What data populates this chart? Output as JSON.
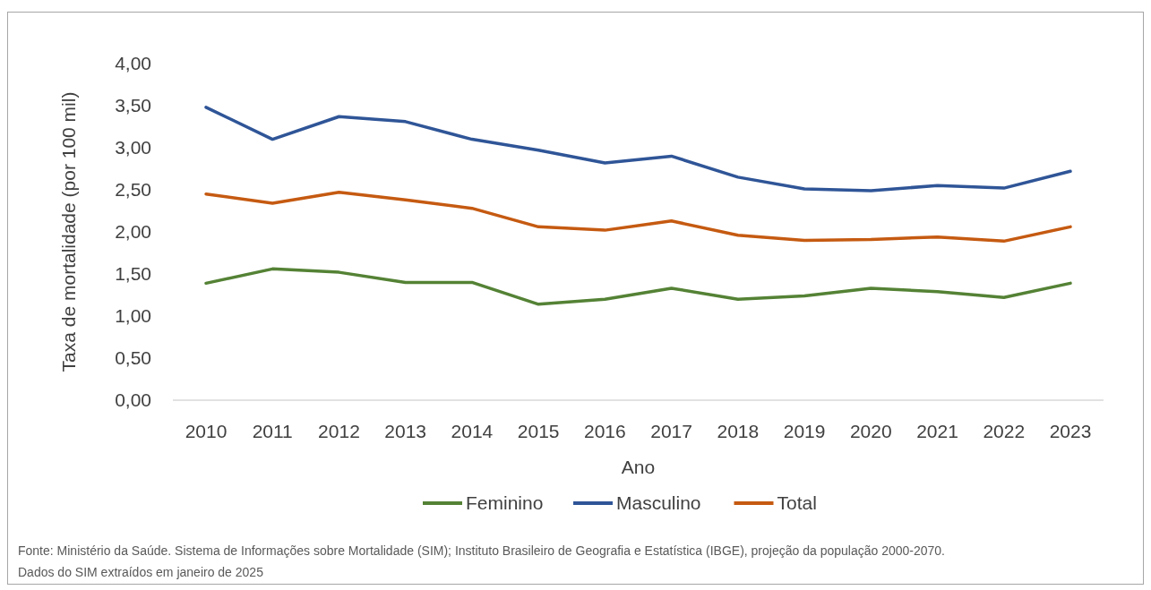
{
  "chart_data": {
    "type": "line",
    "xlabel": "Ano",
    "ylabel": "Taxa de mortalidade (por 100 mil)",
    "categories": [
      "2010",
      "2011",
      "2012",
      "2013",
      "2014",
      "2015",
      "2016",
      "2017",
      "2018",
      "2019",
      "2020",
      "2021",
      "2022",
      "2023"
    ],
    "series": [
      {
        "name": "Feminino",
        "color": "#548235",
        "values": [
          1.39,
          1.56,
          1.52,
          1.4,
          1.4,
          1.14,
          1.2,
          1.33,
          1.2,
          1.24,
          1.33,
          1.29,
          1.22,
          1.39
        ]
      },
      {
        "name": "Masculino",
        "color": "#2f5597",
        "values": [
          3.48,
          3.1,
          3.37,
          3.31,
          3.1,
          2.97,
          2.82,
          2.9,
          2.65,
          2.51,
          2.49,
          2.55,
          2.52,
          2.72
        ]
      },
      {
        "name": "Total",
        "color": "#c55a11",
        "values": [
          2.45,
          2.34,
          2.47,
          2.38,
          2.28,
          2.06,
          2.02,
          2.13,
          1.96,
          1.9,
          1.91,
          1.94,
          1.89,
          2.06
        ]
      }
    ],
    "ylim": [
      0,
      4
    ],
    "yticks": [
      {
        "value": 0,
        "label": "0,00"
      },
      {
        "value": 0.5,
        "label": "0,50"
      },
      {
        "value": 1,
        "label": "1,00"
      },
      {
        "value": 1.5,
        "label": "1,50"
      },
      {
        "value": 2,
        "label": "2,00"
      },
      {
        "value": 2.5,
        "label": "2,50"
      },
      {
        "value": 3,
        "label": "3,00"
      },
      {
        "value": 3.5,
        "label": "3,50"
      },
      {
        "value": 4,
        "label": "4,00"
      }
    ],
    "grid": false,
    "legend": "bottom",
    "marker": "none",
    "line_style": "solid",
    "annotations": [
      "Fonte: Ministério da Saúde. Sistema de Informações sobre Mortalidade (SIM); Instituto Brasileiro de Geografia e Estatística (IBGE), projeção da população 2000-2070.",
      "Dados do SIM extraídos em janeiro de 2025"
    ]
  }
}
